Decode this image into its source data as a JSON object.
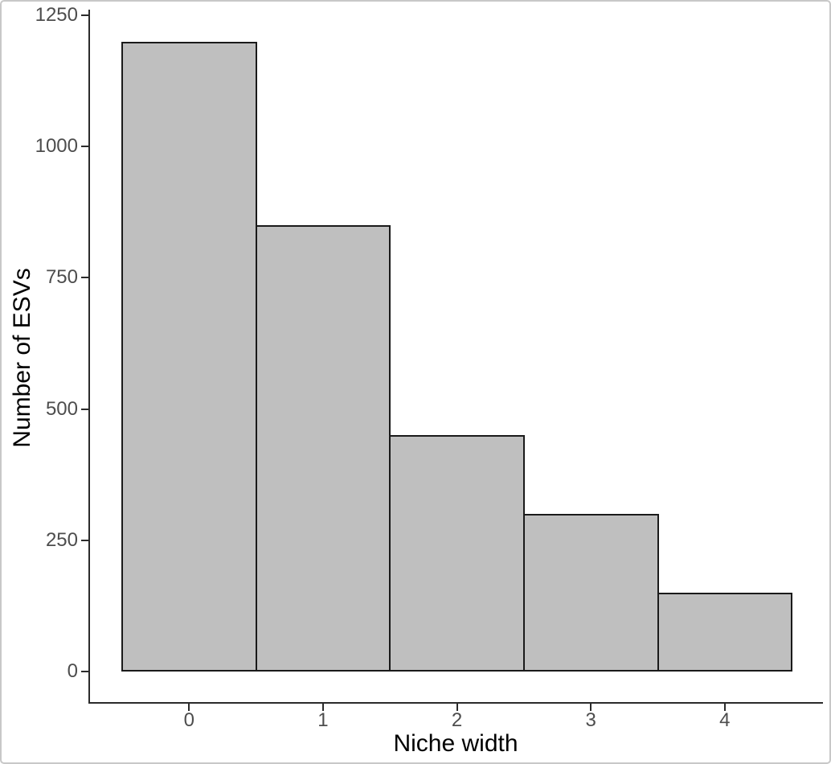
{
  "chart_data": {
    "type": "bar",
    "subtype": "histogram",
    "title": "",
    "xlabel": "Niche width",
    "ylabel": "Number of ESVs",
    "categories": [
      "0",
      "1",
      "2",
      "3",
      "4"
    ],
    "values": [
      1200,
      850,
      450,
      300,
      150
    ],
    "x_tick_labels": [
      "0",
      "1",
      "2",
      "3",
      "4"
    ],
    "y_tick_labels": [
      "0",
      "250",
      "500",
      "750",
      "1000",
      "1250"
    ],
    "y_ticks": [
      0,
      250,
      500,
      750,
      1000,
      1250
    ],
    "ylim": [
      0,
      1250
    ],
    "bar_data_width": 1.0,
    "grid": false,
    "legend": false,
    "colors": {
      "bar_fill": "#bfbfbf",
      "bar_stroke": "#1a1a1a",
      "axis_line": "#2b2b2b",
      "tick_label": "#4d4d4d",
      "axis_title": "#000000",
      "background": "#ffffff",
      "frame_border": "#c8c8c8"
    }
  }
}
